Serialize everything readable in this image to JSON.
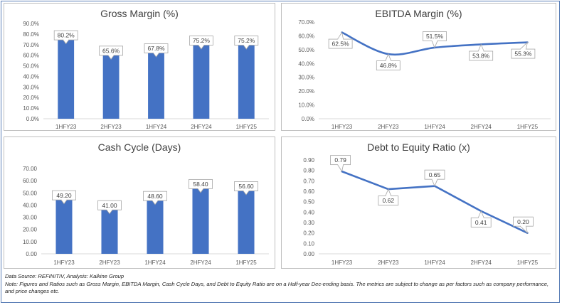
{
  "chart_data": [
    {
      "type": "bar",
      "title": "Gross Margin (%)",
      "categories": [
        "1HFY23",
        "2HFY23",
        "1HFY24",
        "2HFY24",
        "1HFY25"
      ],
      "values": [
        80.2,
        65.6,
        67.8,
        75.2,
        75.2
      ],
      "data_labels": [
        "80.2%",
        "65.6%",
        "67.8%",
        "75.2%",
        "75.2%"
      ],
      "y_ticks": [
        "0.0%",
        "10.0%",
        "20.0%",
        "30.0%",
        "40.0%",
        "50.0%",
        "60.0%",
        "70.0%",
        "80.0%",
        "90.0%"
      ],
      "ylim": [
        0,
        90
      ],
      "color": "#4472c4",
      "grid": false
    },
    {
      "type": "line",
      "title": "EBITDA Margin (%)",
      "categories": [
        "1HFY23",
        "2HFY23",
        "1HFY24",
        "2HFY24",
        "1HFY25"
      ],
      "values": [
        62.5,
        46.8,
        51.5,
        53.8,
        55.3
      ],
      "data_labels": [
        "62.5%",
        "46.8%",
        "51.5%",
        "53.8%",
        "55.3%"
      ],
      "y_ticks": [
        "0.0%",
        "10.0%",
        "20.0%",
        "30.0%",
        "40.0%",
        "50.0%",
        "60.0%",
        "70.0%"
      ],
      "ylim": [
        0,
        70
      ],
      "color": "#4472c4",
      "smooth": true,
      "grid": false
    },
    {
      "type": "bar",
      "title": "Cash Cycle (Days)",
      "categories": [
        "1HFY23",
        "2HFY23",
        "1HFY24",
        "2HFY24",
        "1HFY25"
      ],
      "values": [
        49.2,
        41.0,
        48.6,
        58.4,
        56.6
      ],
      "data_labels": [
        "49.20",
        "41.00",
        "48.60",
        "58.40",
        "56.60"
      ],
      "y_ticks": [
        "0.00",
        "10.00",
        "20.00",
        "30.00",
        "40.00",
        "50.00",
        "60.00",
        "70.00"
      ],
      "ylim": [
        0,
        70
      ],
      "color": "#4472c4",
      "grid": false
    },
    {
      "type": "line",
      "title": "Debt to Equity Ratio (x)",
      "categories": [
        "1HFY23",
        "2HFY23",
        "1HFY24",
        "2HFY24",
        "1HFY25"
      ],
      "values": [
        0.79,
        0.62,
        0.65,
        0.41,
        0.2
      ],
      "data_labels": [
        "0.79",
        "0.62",
        "0.65",
        "0.41",
        "0.20"
      ],
      "y_ticks": [
        "0.00",
        "0.10",
        "0.20",
        "0.30",
        "0.40",
        "0.50",
        "0.60",
        "0.70",
        "0.80",
        "0.90"
      ],
      "ylim": [
        0,
        0.9
      ],
      "color": "#4472c4",
      "smooth": false,
      "grid": false
    }
  ],
  "notes": {
    "source": "Data Source: REFINITIV, Analysis: Kalkine Group",
    "disclaimer": "Note: Figures and Ratios such as Gross Margin, EBITDA Margin, Cash Cycle Days, and Debt to Equity Ratio are on a Half-year Dec-ending basis. The metrics are subject to change as per factors such as company performance, and price changes etc."
  }
}
